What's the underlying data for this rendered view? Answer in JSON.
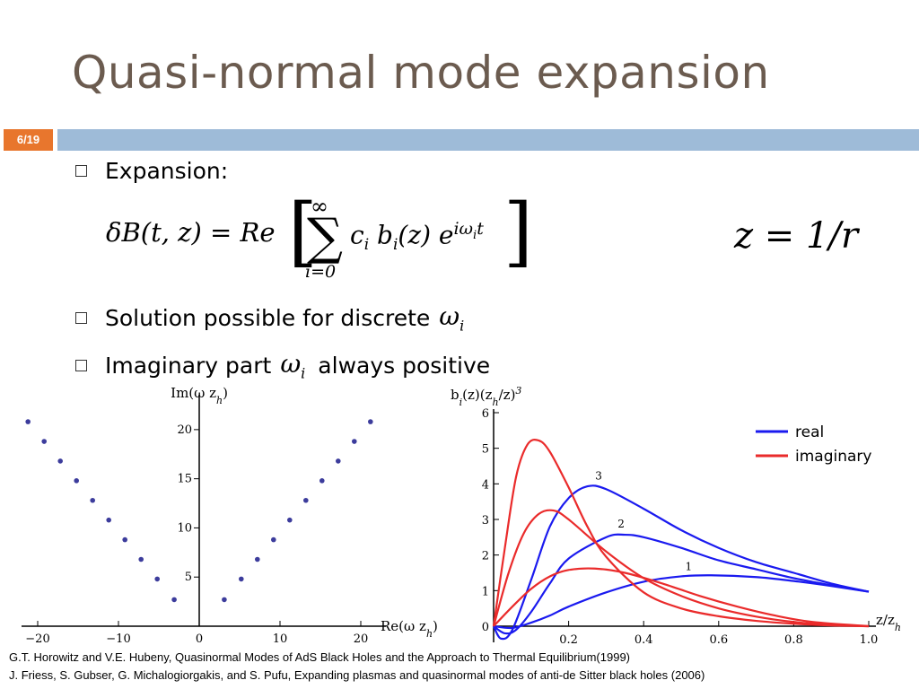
{
  "slide": {
    "title": "Quasi-normal mode expansion",
    "page": "6/19"
  },
  "bullets": [
    {
      "text": "Expansion:"
    },
    {
      "text": "Solution possible for discrete",
      "math": "ω",
      "sub": "i"
    },
    {
      "text_before": "Imaginary part",
      "math": "ω",
      "sub": "i",
      "text_after": "always positive"
    }
  ],
  "equations": {
    "main": {
      "lhs": "δB(t, z) = Re",
      "sum_top": "∞",
      "sum_bottom": "i=0",
      "term": "c",
      "term_sub": "i",
      "basis": " b",
      "basis_sub": "i",
      "arg": "(z) e",
      "exp": "iω",
      "exp_sub": "i",
      "exp_tail": "t"
    },
    "aside": "z = 1/r"
  },
  "chart_data": [
    {
      "type": "scatter",
      "title": "",
      "xlabel": "Re(ω z_h)",
      "ylabel": "Im(ω z_h)",
      "xlim": [
        -22,
        22
      ],
      "ylim": [
        0,
        23
      ],
      "xticks": [
        -20,
        -10,
        0,
        10,
        20
      ],
      "xtick_labels": [
        "−20",
        "−10",
        "0",
        "10",
        "20"
      ],
      "yticks": [
        5,
        10,
        15,
        20
      ],
      "ytick_labels": [
        "5",
        "10",
        "15",
        "20"
      ],
      "point_color": "#3c3c9c",
      "x": [
        3.1,
        5.2,
        7.2,
        9.2,
        11.2,
        13.2,
        15.2,
        17.2,
        19.2,
        21.2,
        -3.1,
        -5.2,
        -7.2,
        -9.2,
        -11.2,
        -13.2,
        -15.2,
        -17.2,
        -19.2,
        -21.2
      ],
      "y": [
        2.7,
        4.8,
        6.8,
        8.8,
        10.8,
        12.8,
        14.8,
        16.8,
        18.8,
        20.8,
        2.7,
        4.8,
        6.8,
        8.8,
        10.8,
        12.8,
        14.8,
        16.8,
        18.8,
        20.8
      ]
    },
    {
      "type": "line",
      "title": "",
      "ylabel": "b_i(z)(z_h/z)^3",
      "xlabel": "z/z_h",
      "xlim": [
        0,
        1.0
      ],
      "ylim": [
        0,
        6
      ],
      "xticks": [
        0.2,
        0.4,
        0.6,
        0.8,
        1.0
      ],
      "xtick_labels": [
        "0.2",
        "0.4",
        "0.6",
        "0.8",
        "1.0"
      ],
      "yticks": [
        0,
        1,
        2,
        3,
        4,
        5,
        6
      ],
      "ytick_labels": [
        "0",
        "1",
        "2",
        "3",
        "4",
        "5",
        "6"
      ],
      "legend": {
        "placement": "top-right",
        "entries": [
          {
            "name": "real",
            "color": "#1a1aef"
          },
          {
            "name": "imaginary",
            "color": "#ea2b2b"
          }
        ]
      },
      "annotations": [
        "3",
        "2",
        "1"
      ],
      "series": [
        {
          "name": "real",
          "color": "#1a1aef",
          "x": [
            0,
            0.02,
            0.05,
            0.1,
            0.15,
            0.2,
            0.25,
            0.3,
            0.4,
            0.5,
            0.6,
            0.7,
            0.8,
            0.9,
            1.0
          ],
          "values": [
            0,
            -0.35,
            -0.1,
            1.3,
            2.8,
            3.6,
            3.93,
            3.85,
            3.3,
            2.7,
            2.2,
            1.8,
            1.5,
            1.2,
            0.97
          ]
        },
        {
          "name": "real",
          "color": "#1a1aef",
          "x": [
            0,
            0.03,
            0.06,
            0.1,
            0.15,
            0.2,
            0.3,
            0.35,
            0.4,
            0.5,
            0.6,
            0.7,
            0.8,
            0.9,
            1.0
          ],
          "values": [
            0,
            -0.2,
            -0.1,
            0.4,
            1.2,
            1.9,
            2.5,
            2.57,
            2.5,
            2.2,
            1.85,
            1.6,
            1.35,
            1.15,
            0.97
          ]
        },
        {
          "name": "real",
          "color": "#1a1aef",
          "x": [
            0,
            0.05,
            0.1,
            0.15,
            0.2,
            0.3,
            0.4,
            0.5,
            0.58,
            0.7,
            0.8,
            0.9,
            1.0
          ],
          "values": [
            0,
            -0.05,
            0.1,
            0.3,
            0.55,
            0.95,
            1.25,
            1.4,
            1.43,
            1.38,
            1.27,
            1.13,
            0.97
          ]
        },
        {
          "name": "imaginary",
          "color": "#ea2b2b",
          "x": [
            0,
            0.03,
            0.06,
            0.09,
            0.12,
            0.15,
            0.2,
            0.25,
            0.3,
            0.4,
            0.5,
            0.6,
            0.7,
            0.8,
            0.9,
            1.0
          ],
          "values": [
            0,
            2.2,
            4.2,
            5.1,
            5.22,
            4.9,
            3.9,
            2.8,
            1.95,
            0.95,
            0.5,
            0.28,
            0.15,
            0.07,
            0.02,
            0
          ]
        },
        {
          "name": "imaginary",
          "color": "#ea2b2b",
          "x": [
            0,
            0.04,
            0.08,
            0.12,
            0.16,
            0.2,
            0.3,
            0.4,
            0.5,
            0.6,
            0.7,
            0.8,
            0.9,
            1.0
          ],
          "values": [
            0,
            1.5,
            2.6,
            3.15,
            3.25,
            3.0,
            2.1,
            1.35,
            0.85,
            0.5,
            0.27,
            0.12,
            0.04,
            0
          ]
        },
        {
          "name": "imaginary",
          "color": "#ea2b2b",
          "x": [
            0,
            0.05,
            0.1,
            0.15,
            0.2,
            0.27,
            0.35,
            0.45,
            0.55,
            0.65,
            0.75,
            0.85,
            1.0
          ],
          "values": [
            0,
            0.55,
            1.05,
            1.4,
            1.58,
            1.62,
            1.5,
            1.2,
            0.85,
            0.55,
            0.3,
            0.12,
            0
          ]
        }
      ]
    }
  ],
  "references": [
    "G.T. Horowitz and V.E. Hubeny, Quasinormal Modes of AdS Black Holes and the Approach to Thermal Equilibrium(1999)",
    "J. Friess, S. Gubser, G. Michalogiorgakis, and S. Pufu, Expanding plasmas and quasinormal modes of anti-de Sitter black holes (2006)"
  ]
}
